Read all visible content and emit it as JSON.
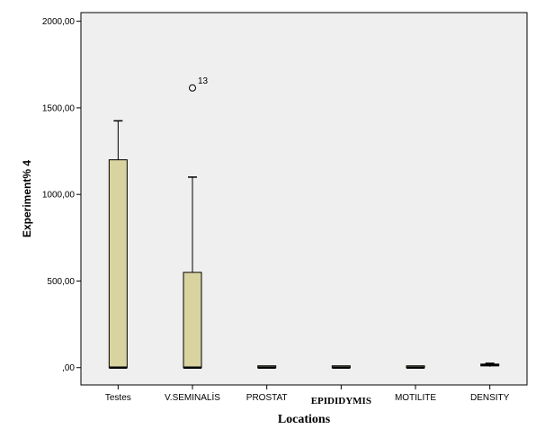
{
  "chart_data": {
    "type": "box",
    "title": "",
    "xlabel": "Locations",
    "ylabel": "Experiment% 4",
    "ylim": [
      -100,
      2050
    ],
    "yticks": [
      0,
      500,
      1000,
      1500,
      2000
    ],
    "ytick_labels": [
      ",00",
      "500,00",
      "1000,00",
      "1500,00",
      "2000,00"
    ],
    "categories": [
      "Testes",
      "V.SEMINALİS",
      "PROSTAT",
      "EPIDIDYMIS",
      "MOTILITE",
      "DENSITY"
    ],
    "boxes": [
      {
        "category": "Testes",
        "whisker_low": 0,
        "q1": 0,
        "median": 0,
        "q3": 1200,
        "whisker_high": 1425
      },
      {
        "category": "V.SEMINALİS",
        "whisker_low": 0,
        "q1": 0,
        "median": 0,
        "q3": 550,
        "whisker_high": 1100
      },
      {
        "category": "PROSTAT",
        "whisker_low": 0,
        "q1": 0,
        "median": 0,
        "q3": 0,
        "whisker_high": 0
      },
      {
        "category": "EPIDIDYMIS",
        "whisker_low": 0,
        "q1": 0,
        "median": 0,
        "q3": 0,
        "whisker_high": 0
      },
      {
        "category": "MOTILITE",
        "whisker_low": 0,
        "q1": 0,
        "median": 0,
        "q3": 0,
        "whisker_high": 0
      },
      {
        "category": "DENSITY",
        "whisker_low": 5,
        "q1": 10,
        "median": 15,
        "q3": 20,
        "whisker_high": 25
      }
    ],
    "outliers": [
      {
        "category": "V.SEMINALİS",
        "value": 1615,
        "label": "13"
      }
    ],
    "grid": false,
    "colors": {
      "plot_background": "#efefef",
      "box_fill": "#d9d3a0",
      "stroke": "#000000"
    }
  }
}
